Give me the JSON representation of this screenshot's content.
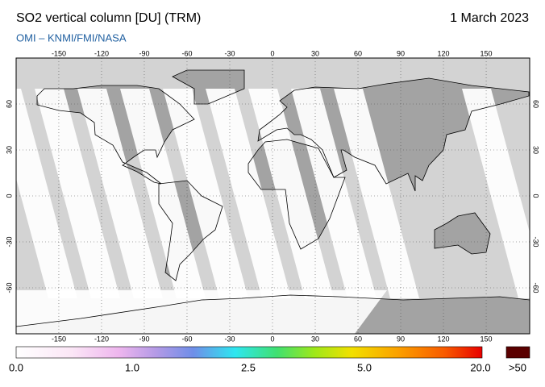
{
  "header": {
    "title": "SO2 vertical column [DU] (TRM)",
    "date": "1 March 2023",
    "source": "OMI  –  KNMI/FMI/NASA"
  },
  "map": {
    "lon_ticks": [
      -150,
      -120,
      -90,
      -60,
      -30,
      0,
      30,
      60,
      90,
      120,
      150
    ],
    "lat_ticks": [
      60,
      30,
      0,
      -30,
      -60
    ]
  },
  "colorbar": {
    "labels": [
      "0.0",
      "1.0",
      "2.5",
      "5.0",
      "20.0"
    ],
    "overflow_label": ">50"
  }
}
